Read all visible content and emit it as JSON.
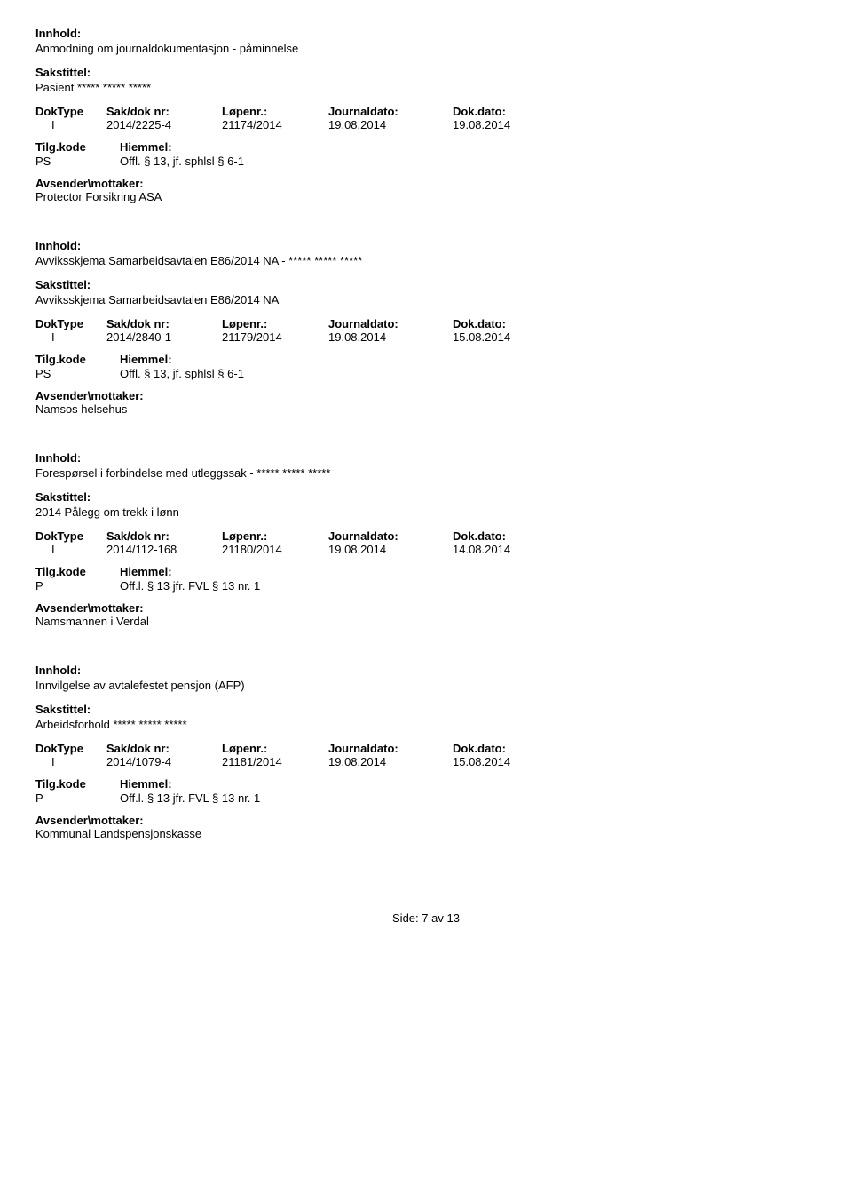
{
  "labels": {
    "innhold": "Innhold:",
    "sakstittel": "Sakstittel:",
    "doktype": "DokType",
    "sakdoknr": "Sak/dok nr:",
    "lopenr": "Løpenr.:",
    "journaldato": "Journaldato:",
    "dokdato": "Dok.dato:",
    "tilgkode": "Tilg.kode",
    "hiemmel": "Hiemmel:",
    "avsender": "Avsender\\mottaker:"
  },
  "entries": [
    {
      "innhold": "Anmodning om journaldokumentasjon - påminnelse",
      "sakstittel": "Pasient ***** ***** *****",
      "doktype": "I",
      "sakdoknr": "2014/2225-4",
      "lopenr": "21174/2014",
      "journaldato": "19.08.2014",
      "dokdato": "19.08.2014",
      "tilgkode": "PS",
      "hiemmel": "Offl. § 13, jf. sphlsl § 6-1",
      "avsender": "Protector Forsikring ASA"
    },
    {
      "innhold": "Avviksskjema Samarbeidsavtalen E86/2014 NA - ***** ***** *****",
      "sakstittel": "Avviksskjema Samarbeidsavtalen E86/2014 NA",
      "doktype": "I",
      "sakdoknr": "2014/2840-1",
      "lopenr": "21179/2014",
      "journaldato": "19.08.2014",
      "dokdato": "15.08.2014",
      "tilgkode": "PS",
      "hiemmel": "Offl. § 13, jf. sphlsl § 6-1",
      "avsender": "Namsos helsehus"
    },
    {
      "innhold": "Forespørsel i forbindelse med utleggssak - ***** ***** *****",
      "sakstittel": "2014 Pålegg om trekk i lønn",
      "doktype": "I",
      "sakdoknr": "2014/112-168",
      "lopenr": "21180/2014",
      "journaldato": "19.08.2014",
      "dokdato": "14.08.2014",
      "tilgkode": "P",
      "hiemmel": "Off.l. § 13 jfr. FVL § 13 nr. 1",
      "avsender": "Namsmannen i Verdal"
    },
    {
      "innhold": "Innvilgelse av avtalefestet pensjon (AFP)",
      "sakstittel": "Arbeidsforhold ***** ***** *****",
      "doktype": "I",
      "sakdoknr": "2014/1079-4",
      "lopenr": "21181/2014",
      "journaldato": "19.08.2014",
      "dokdato": "15.08.2014",
      "tilgkode": "P",
      "hiemmel": "Off.l. § 13 jfr. FVL § 13 nr. 1",
      "avsender": "Kommunal Landspensjonskasse"
    }
  ],
  "footer": {
    "side_label": "Side:",
    "page": "7",
    "av": "av",
    "total": "13"
  }
}
